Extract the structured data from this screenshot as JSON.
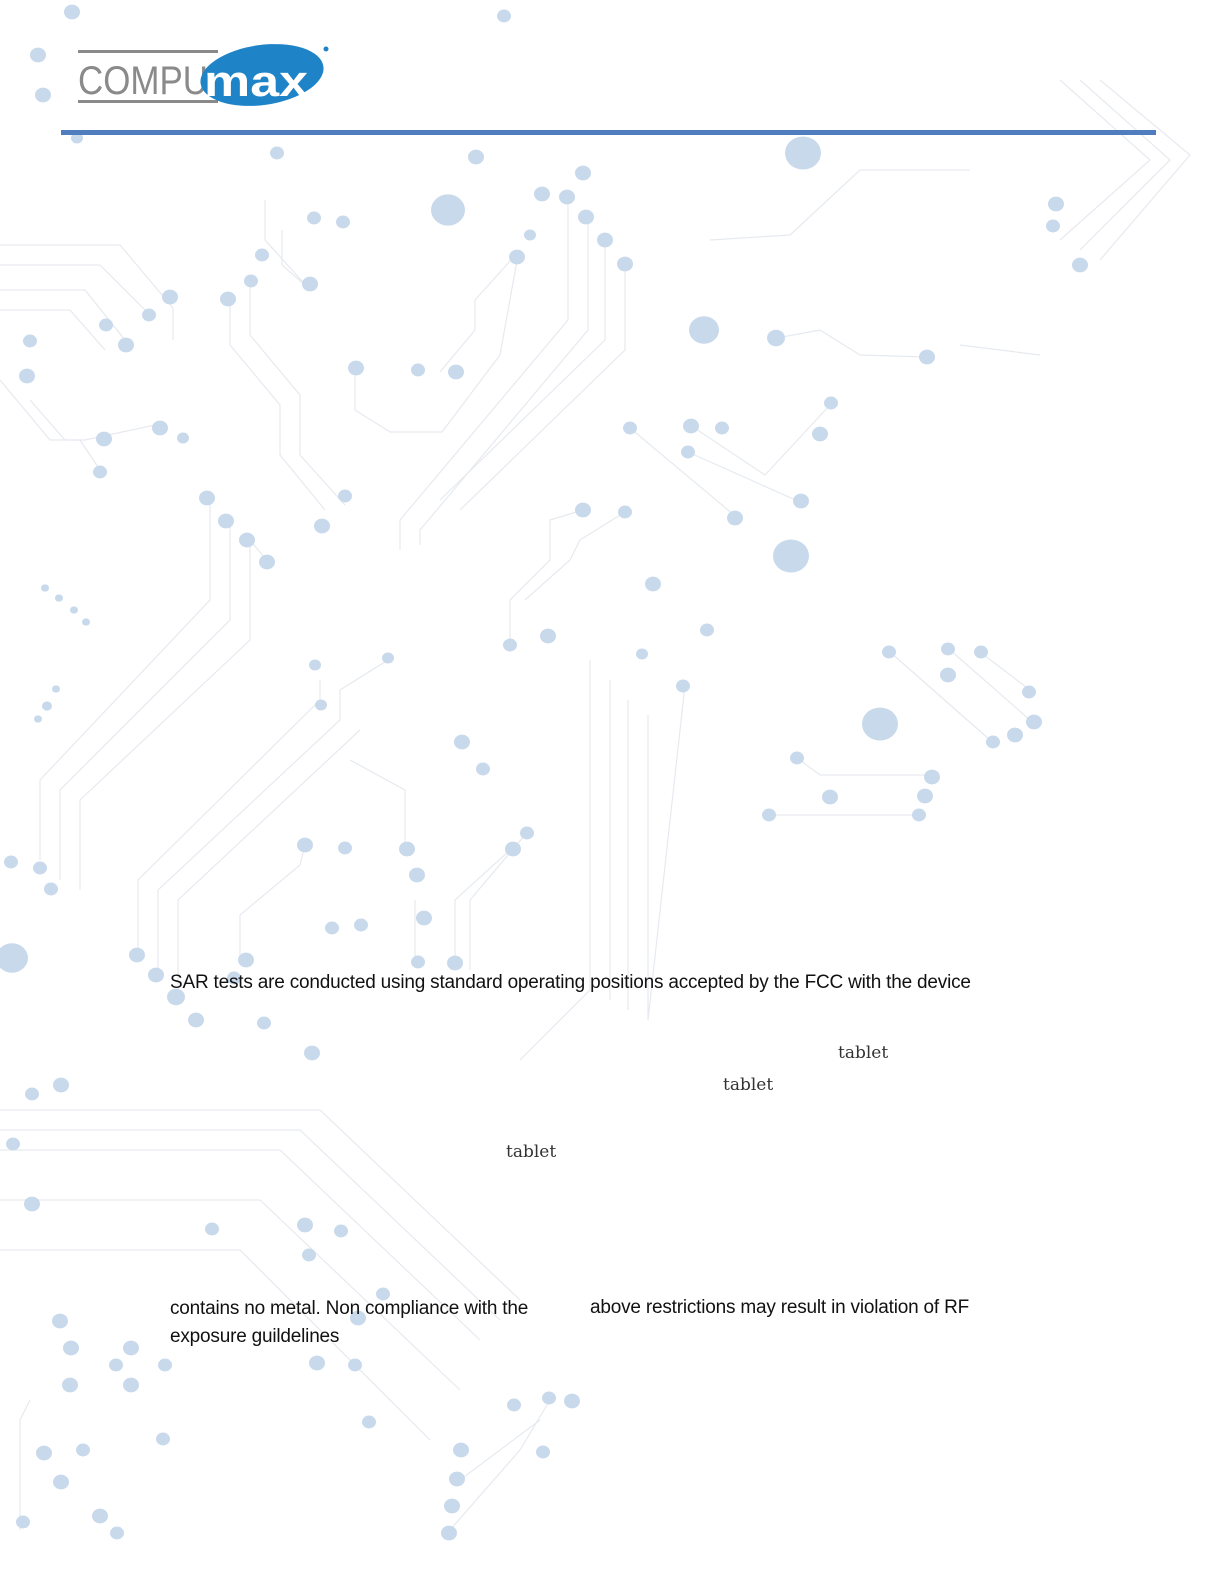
{
  "header": {
    "logo_text": "COMPUmax",
    "logo_colors": {
      "gray": "#8a8a8a",
      "blue": "#1f83c7"
    },
    "rule_color": "#4f7dbd"
  },
  "background": {
    "dot_color": "#c8d9ec",
    "trace_color": "#e6eaef"
  },
  "body": {
    "line1": "SAR tests are conducted using standard operating positions accepted by the FCC with the device",
    "tablet_1": "tablet",
    "tablet_2": "tablet",
    "tablet_3": "tablet",
    "line2a": "contains no metal. Non compliance with the",
    "line2b": "above restrictions may result in violation of RF",
    "line3": "exposure guildelines"
  }
}
